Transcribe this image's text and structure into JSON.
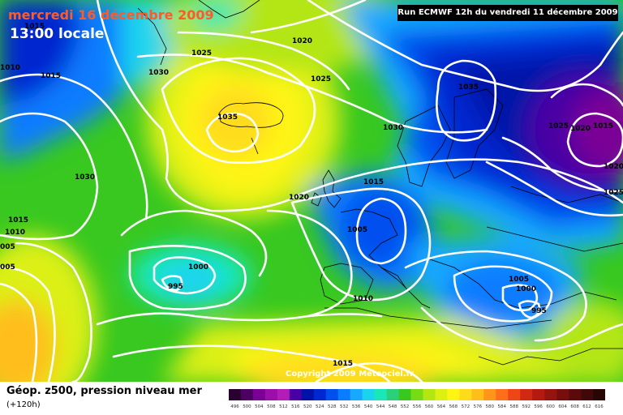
{
  "header": {
    "date": "mercredi 16 décembre 2009",
    "local_time": "13:00 locale",
    "run": "Run ECMWF 12h du vendredi 11 décembre 2009",
    "copyright": "Copyright 2009 Meteociel.fr"
  },
  "footer": {
    "title": "Géop. z500, pression niveau mer",
    "subtitle": "(+120h)"
  },
  "isobar_labels": [
    "1015",
    "1010",
    "1015",
    "1030",
    "1025",
    "1020",
    "1025",
    "1035",
    "1030",
    "1035",
    "1025",
    "1020",
    "1015",
    "1020",
    "1025",
    "1030",
    "1015",
    "1020",
    "1015",
    "1010",
    "005",
    "1005",
    "1000",
    "005",
    "995",
    "1010",
    "1005",
    "1000",
    "995",
    "1015"
  ],
  "legend": {
    "ticks": [
      "496",
      "500",
      "504",
      "508",
      "512",
      "516",
      "520",
      "524",
      "528",
      "532",
      "536",
      "540",
      "544",
      "548",
      "552",
      "556",
      "560",
      "564",
      "568",
      "572",
      "576",
      "580",
      "584",
      "588",
      "592",
      "596",
      "600",
      "604",
      "608",
      "612",
      "616"
    ],
    "colors": [
      "#2a0030",
      "#4b0062",
      "#7a0096",
      "#9b0fa8",
      "#b41cb8",
      "#4800a4",
      "#0012a8",
      "#0028d0",
      "#0050ee",
      "#0a7cff",
      "#18a8ff",
      "#1ad4ee",
      "#18e8b8",
      "#2ad07a",
      "#38c820",
      "#78dc14",
      "#b4e614",
      "#dcf014",
      "#fff514",
      "#ffdc1a",
      "#ffbe1a",
      "#ff961a",
      "#ff6e1a",
      "#f04616",
      "#d22a12",
      "#b41a10",
      "#96140e",
      "#780e0c",
      "#5a0a0a",
      "#400808",
      "#280606"
    ]
  },
  "colors": {
    "header_date": "#ff5a28",
    "isobar": "#ffffff",
    "land_border": "#000000"
  }
}
